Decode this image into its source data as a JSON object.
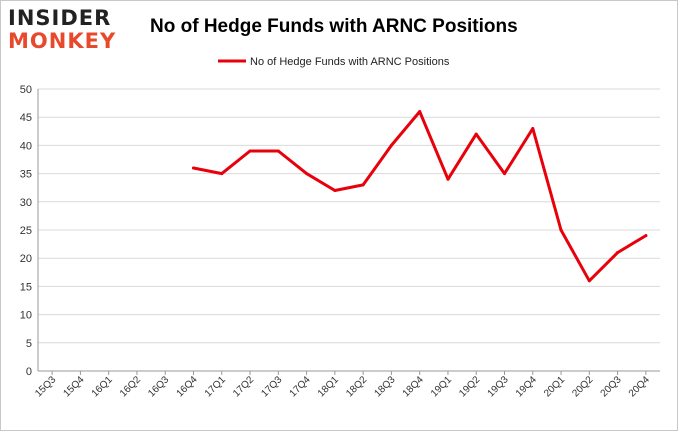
{
  "logo": {
    "line1": "INSIDER",
    "line2": "MONKEY"
  },
  "chart_data": {
    "type": "line",
    "title": "No of Hedge Funds with ARNC Positions",
    "xlabel": "",
    "ylabel": "",
    "categories": [
      "15Q3",
      "15Q4",
      "16Q1",
      "16Q2",
      "16Q3",
      "16Q4",
      "17Q1",
      "17Q2",
      "17Q3",
      "17Q4",
      "18Q1",
      "18Q2",
      "18Q3",
      "18Q4",
      "19Q1",
      "19Q2",
      "19Q3",
      "19Q4",
      "20Q1",
      "20Q2",
      "20Q3",
      "20Q4"
    ],
    "series": [
      {
        "name": "No of Hedge Funds with ARNC Positions",
        "color": "#e8000b",
        "values": [
          null,
          null,
          null,
          null,
          null,
          36,
          35,
          39,
          39,
          35,
          32,
          33,
          40,
          46,
          34,
          42,
          35,
          43,
          25,
          16,
          21,
          24
        ]
      }
    ],
    "ylim": [
      0,
      50
    ],
    "yticks": [
      0,
      5,
      10,
      15,
      20,
      25,
      30,
      35,
      40,
      45,
      50
    ],
    "grid": true,
    "legend_position": "top-center"
  }
}
